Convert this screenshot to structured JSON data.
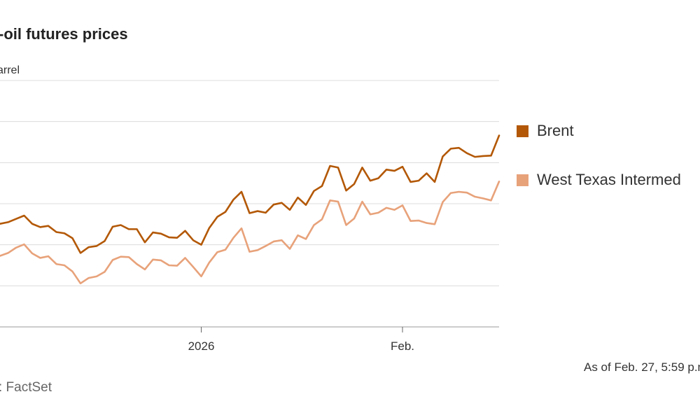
{
  "chart_data": {
    "type": "line",
    "title": "-oil futures prices",
    "unit_label": "arrel",
    "xlabel": "",
    "ylabel": "",
    "ylim": [
      0,
      6
    ],
    "grid": true,
    "legend_position": "right",
    "x_tick_labels": [
      {
        "label": "2026",
        "index": 25
      },
      {
        "label": "Feb.",
        "index": 50
      }
    ],
    "series": [
      {
        "name": "Brent",
        "color": "#b35806",
        "values": [
          2.51,
          2.55,
          2.63,
          2.71,
          2.51,
          2.43,
          2.46,
          2.31,
          2.28,
          2.16,
          1.8,
          1.94,
          1.97,
          2.09,
          2.44,
          2.48,
          2.38,
          2.38,
          2.06,
          2.3,
          2.27,
          2.18,
          2.17,
          2.34,
          2.11,
          2.0,
          2.41,
          2.68,
          2.8,
          3.1,
          3.29,
          2.77,
          2.82,
          2.78,
          2.98,
          3.02,
          2.85,
          3.15,
          2.97,
          3.31,
          3.43,
          3.92,
          3.88,
          3.32,
          3.48,
          3.88,
          3.56,
          3.62,
          3.83,
          3.8,
          3.9,
          3.53,
          3.56,
          3.74,
          3.53,
          4.15,
          4.34,
          4.36,
          4.23,
          4.14,
          4.16,
          4.17,
          4.66
        ]
      },
      {
        "name": "West Texas Intermed",
        "color": "#e8a27a",
        "values": [
          1.73,
          1.8,
          1.93,
          2.01,
          1.79,
          1.68,
          1.72,
          1.53,
          1.5,
          1.35,
          1.06,
          1.19,
          1.23,
          1.34,
          1.63,
          1.71,
          1.7,
          1.53,
          1.4,
          1.64,
          1.62,
          1.5,
          1.49,
          1.68,
          1.46,
          1.23,
          1.57,
          1.82,
          1.88,
          2.17,
          2.4,
          1.83,
          1.87,
          1.97,
          2.08,
          2.11,
          1.9,
          2.23,
          2.14,
          2.48,
          2.62,
          3.08,
          3.05,
          2.48,
          2.64,
          3.05,
          2.74,
          2.78,
          2.9,
          2.85,
          2.96,
          2.58,
          2.59,
          2.53,
          2.5,
          3.04,
          3.26,
          3.29,
          3.27,
          3.17,
          3.13,
          3.08,
          3.54
        ]
      }
    ],
    "as_of": "As of Feb. 27, 5:59 p.m",
    "source": ": FactSet"
  }
}
